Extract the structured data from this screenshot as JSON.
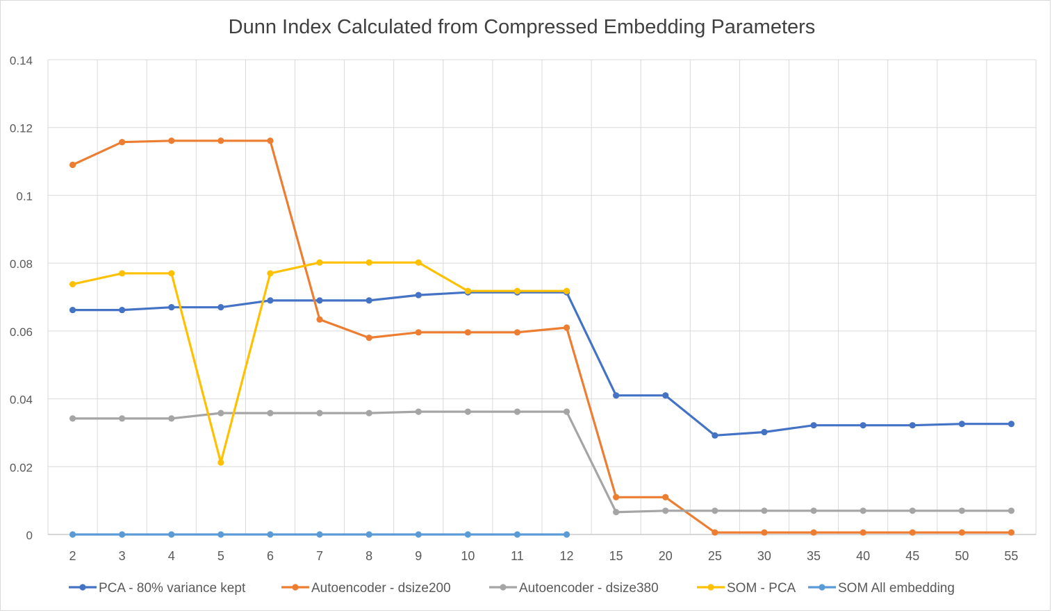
{
  "chart_data": {
    "type": "line",
    "title": "Dunn Index Calculated from Compressed Embedding Parameters",
    "xlabel": "",
    "ylabel": "",
    "categories": [
      "2",
      "3",
      "4",
      "5",
      "6",
      "7",
      "8",
      "9",
      "10",
      "11",
      "12",
      "15",
      "20",
      "25",
      "30",
      "35",
      "40",
      "45",
      "50",
      "55"
    ],
    "ylim": [
      0,
      0.14
    ],
    "yticks": [
      "0",
      "0.02",
      "0.04",
      "0.06",
      "0.08",
      "0.1",
      "0.12",
      "0.14"
    ],
    "grid": true,
    "legend_position": "bottom",
    "series": [
      {
        "name": "PCA - 80% variance kept",
        "color": "#4472C4",
        "values": [
          0.0662,
          0.0662,
          0.067,
          0.067,
          0.069,
          0.069,
          0.069,
          0.0706,
          0.0714,
          0.0714,
          0.0714,
          0.041,
          0.041,
          0.0292,
          0.0302,
          0.0322,
          0.0322,
          0.0322,
          0.0326,
          0.0326
        ]
      },
      {
        "name": "Autoencoder -  dsize200",
        "color": "#ED7D31",
        "values": [
          0.109,
          0.1157,
          0.1161,
          0.1161,
          0.1161,
          0.0634,
          0.058,
          0.0596,
          0.0596,
          0.0596,
          0.061,
          0.011,
          0.011,
          0.0006,
          0.0006,
          0.0006,
          0.0006,
          0.0006,
          0.0006,
          0.0006
        ]
      },
      {
        "name": "Autoencoder - dsize380",
        "color": "#A5A5A5",
        "values": [
          0.0342,
          0.0342,
          0.0342,
          0.0358,
          0.0358,
          0.0358,
          0.0358,
          0.0362,
          0.0362,
          0.0362,
          0.0362,
          0.0066,
          0.007,
          0.007,
          0.007,
          0.007,
          0.007,
          0.007,
          0.007,
          0.007
        ]
      },
      {
        "name": "SOM - PCA",
        "color": "#FFC000",
        "values": [
          0.0738,
          0.077,
          0.077,
          0.0212,
          0.077,
          0.0802,
          0.0802,
          0.0802,
          0.0718,
          0.0718,
          0.0718,
          null,
          null,
          null,
          null,
          null,
          null,
          null,
          null,
          null
        ]
      },
      {
        "name": "SOM All embedding",
        "color": "#5B9BD5",
        "values": [
          0,
          0,
          0,
          0,
          0,
          0,
          0,
          0,
          0,
          0,
          0,
          null,
          null,
          null,
          null,
          null,
          null,
          null,
          null,
          null
        ]
      }
    ]
  }
}
